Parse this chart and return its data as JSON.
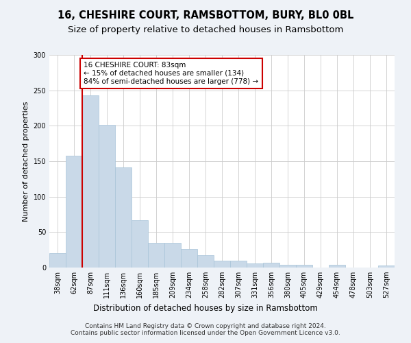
{
  "title": "16, CHESHIRE COURT, RAMSBOTTOM, BURY, BL0 0BL",
  "subtitle": "Size of property relative to detached houses in Ramsbottom",
  "xlabel": "Distribution of detached houses by size in Ramsbottom",
  "ylabel": "Number of detached properties",
  "categories": [
    "38sqm",
    "62sqm",
    "87sqm",
    "111sqm",
    "136sqm",
    "160sqm",
    "185sqm",
    "209sqm",
    "234sqm",
    "258sqm",
    "282sqm",
    "307sqm",
    "331sqm",
    "356sqm",
    "380sqm",
    "405sqm",
    "429sqm",
    "454sqm",
    "478sqm",
    "503sqm",
    "527sqm"
  ],
  "values": [
    20,
    158,
    243,
    201,
    141,
    67,
    35,
    35,
    26,
    17,
    10,
    10,
    6,
    7,
    4,
    4,
    0,
    4,
    0,
    0,
    3
  ],
  "bar_color": "#c9d9e8",
  "bar_edgecolor": "#a8c4d8",
  "vline_color": "#cc0000",
  "annotation_text": "16 CHESHIRE COURT: 83sqm\n← 15% of detached houses are smaller (134)\n84% of semi-detached houses are larger (778) →",
  "annotation_box_edgecolor": "#cc0000",
  "annotation_box_facecolor": "white",
  "ylim": [
    0,
    300
  ],
  "yticks": [
    0,
    50,
    100,
    150,
    200,
    250,
    300
  ],
  "footer": "Contains HM Land Registry data © Crown copyright and database right 2024.\nContains public sector information licensed under the Open Government Licence v3.0.",
  "background_color": "#eef2f7",
  "plot_background_color": "#ffffff",
  "title_fontsize": 10.5,
  "subtitle_fontsize": 9.5,
  "xlabel_fontsize": 8.5,
  "ylabel_fontsize": 8,
  "tick_fontsize": 7,
  "annotation_fontsize": 7.5,
  "footer_fontsize": 6.5
}
